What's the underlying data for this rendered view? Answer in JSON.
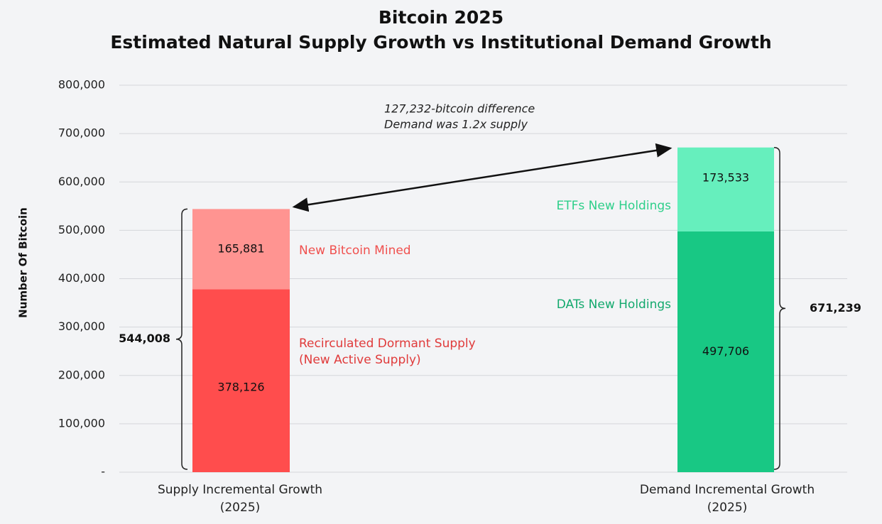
{
  "chart_data": {
    "type": "bar",
    "stacked": true,
    "title": "Bitcoin 2025",
    "subtitle": "Estimated Natural Supply Growth vs Institutional Demand Growth",
    "ylabel": "Number Of Bitcoin",
    "ylim": [
      0,
      800000
    ],
    "yticks": [
      {
        "value": 0,
        "label": "-"
      },
      {
        "value": 100000,
        "label": "100,000"
      },
      {
        "value": 200000,
        "label": "200,000"
      },
      {
        "value": 300000,
        "label": "300,000"
      },
      {
        "value": 400000,
        "label": "400,000"
      },
      {
        "value": 500000,
        "label": "500,000"
      },
      {
        "value": 600000,
        "label": "600,000"
      },
      {
        "value": 700000,
        "label": "700,000"
      },
      {
        "value": 800000,
        "label": "800,000"
      }
    ],
    "grid": true,
    "bars": [
      {
        "category": [
          "Supply Incremental Growth",
          "(2025)"
        ],
        "total": 544008,
        "total_label": "544,008",
        "segments": [
          {
            "name": [
              "Recirculated Dormant Supply",
              "(New Active Supply)"
            ],
            "value": 378126,
            "label": "378,126",
            "color": "#ff4d4d",
            "text_color": "#e03b3b"
          },
          {
            "name": [
              "New Bitcoin Mined"
            ],
            "value": 165881,
            "label": "165,881",
            "color": "#ff9491",
            "text_color": "#f0504e"
          }
        ]
      },
      {
        "category": [
          "Demand Incremental Growth",
          "(2025)"
        ],
        "total": 671239,
        "total_label": "671,239",
        "segments": [
          {
            "name": [
              "DATs New Holdings"
            ],
            "value": 497706,
            "label": "497,706",
            "color": "#18c884",
            "text_color": "#13a96d"
          },
          {
            "name": [
              "ETFs New Holdings"
            ],
            "value": 173533,
            "label": "173,533",
            "color": "#66efbd",
            "text_color": "#2ecf8a"
          }
        ]
      }
    ],
    "annotation": {
      "lines": [
        "127,232-bitcoin difference",
        "Demand was 1.2x supply"
      ],
      "difference": 127232
    }
  }
}
